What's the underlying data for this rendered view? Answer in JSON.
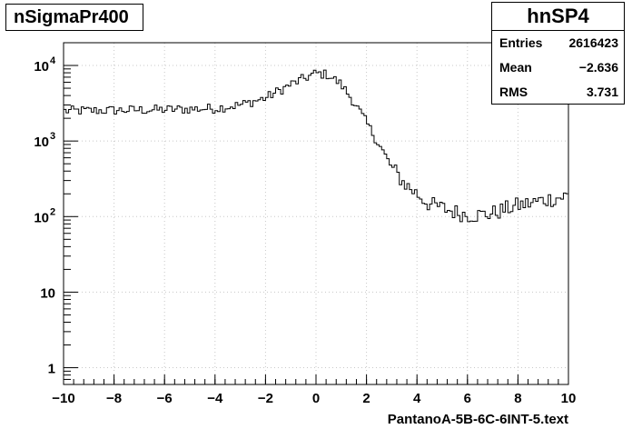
{
  "chart_data": {
    "type": "histogram",
    "title": "nSigmaPr400",
    "xlabel": "PantanoA-5B-6C-6INT-5.text",
    "ylabel": "",
    "xlim": [
      -10,
      10
    ],
    "ylim": [
      0.6,
      20000
    ],
    "log_y": true,
    "grid": true,
    "x_ticks": [
      "−10",
      "−8",
      "−6",
      "−4",
      "−2",
      "0",
      "2",
      "4",
      "6",
      "8",
      "10"
    ],
    "y_ticks": [
      {
        "value": 1,
        "label": "1"
      },
      {
        "value": 10,
        "label": "10"
      },
      {
        "value": 100,
        "label": "10",
        "exp": "2"
      },
      {
        "value": 1000,
        "label": "10",
        "exp": "3"
      },
      {
        "value": 10000,
        "label": "10",
        "exp": "4"
      }
    ],
    "shape_points": [
      [
        -10,
        2500
      ],
      [
        -8,
        2550
      ],
      [
        -6,
        2600
      ],
      [
        -4,
        2700
      ],
      [
        -3,
        3000
      ],
      [
        -2,
        3700
      ],
      [
        -1,
        5600
      ],
      [
        0,
        7900
      ],
      [
        0.5,
        7500
      ],
      [
        1,
        5600
      ],
      [
        1.5,
        3300
      ],
      [
        2,
        1750
      ],
      [
        2.5,
        900
      ],
      [
        3,
        450
      ],
      [
        3.5,
        275
      ],
      [
        4,
        200
      ],
      [
        4.5,
        145
      ],
      [
        5,
        130
      ],
      [
        5.5,
        115
      ],
      [
        6,
        105
      ],
      [
        6.5,
        105
      ],
      [
        7,
        110
      ],
      [
        7.5,
        125
      ],
      [
        8,
        140
      ],
      [
        8.5,
        150
      ],
      [
        9,
        165
      ],
      [
        9.5,
        175
      ],
      [
        10,
        190
      ]
    ],
    "n_bins": 200
  },
  "stats": {
    "name": "hnSP4",
    "rows": [
      {
        "label": "Entries",
        "value": "2616423"
      },
      {
        "label": "Mean",
        "value": "−2.636"
      },
      {
        "label": "RMS",
        "value": "3.731"
      }
    ]
  }
}
